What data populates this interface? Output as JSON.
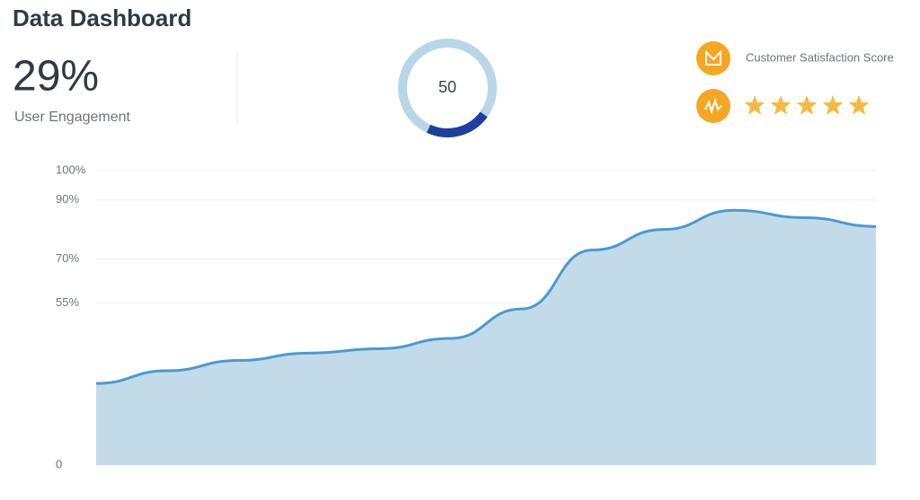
{
  "header": {
    "title": "Data Dashboard"
  },
  "kpi": {
    "value": "29%",
    "label": "User Engagement"
  },
  "gauge": {
    "value": "50"
  },
  "satisfaction": {
    "label": "Customer Satisfaction Score",
    "rating": 5
  },
  "chart_data": {
    "type": "area",
    "values": [
      27.7,
      32,
      35.5,
      38,
      39.5,
      43,
      53,
      73,
      80,
      86.5,
      84,
      81
    ],
    "color": "#4a9bd1",
    "fill": "#c3dbe9",
    "ylim": [
      0,
      100
    ],
    "yticks": [
      {
        "value": 100,
        "label": "100%"
      },
      {
        "value": 90,
        "label": "90%"
      },
      {
        "value": 70,
        "label": "70%"
      },
      {
        "value": 55,
        "label": "55%"
      },
      0
    ],
    "grid": true
  }
}
